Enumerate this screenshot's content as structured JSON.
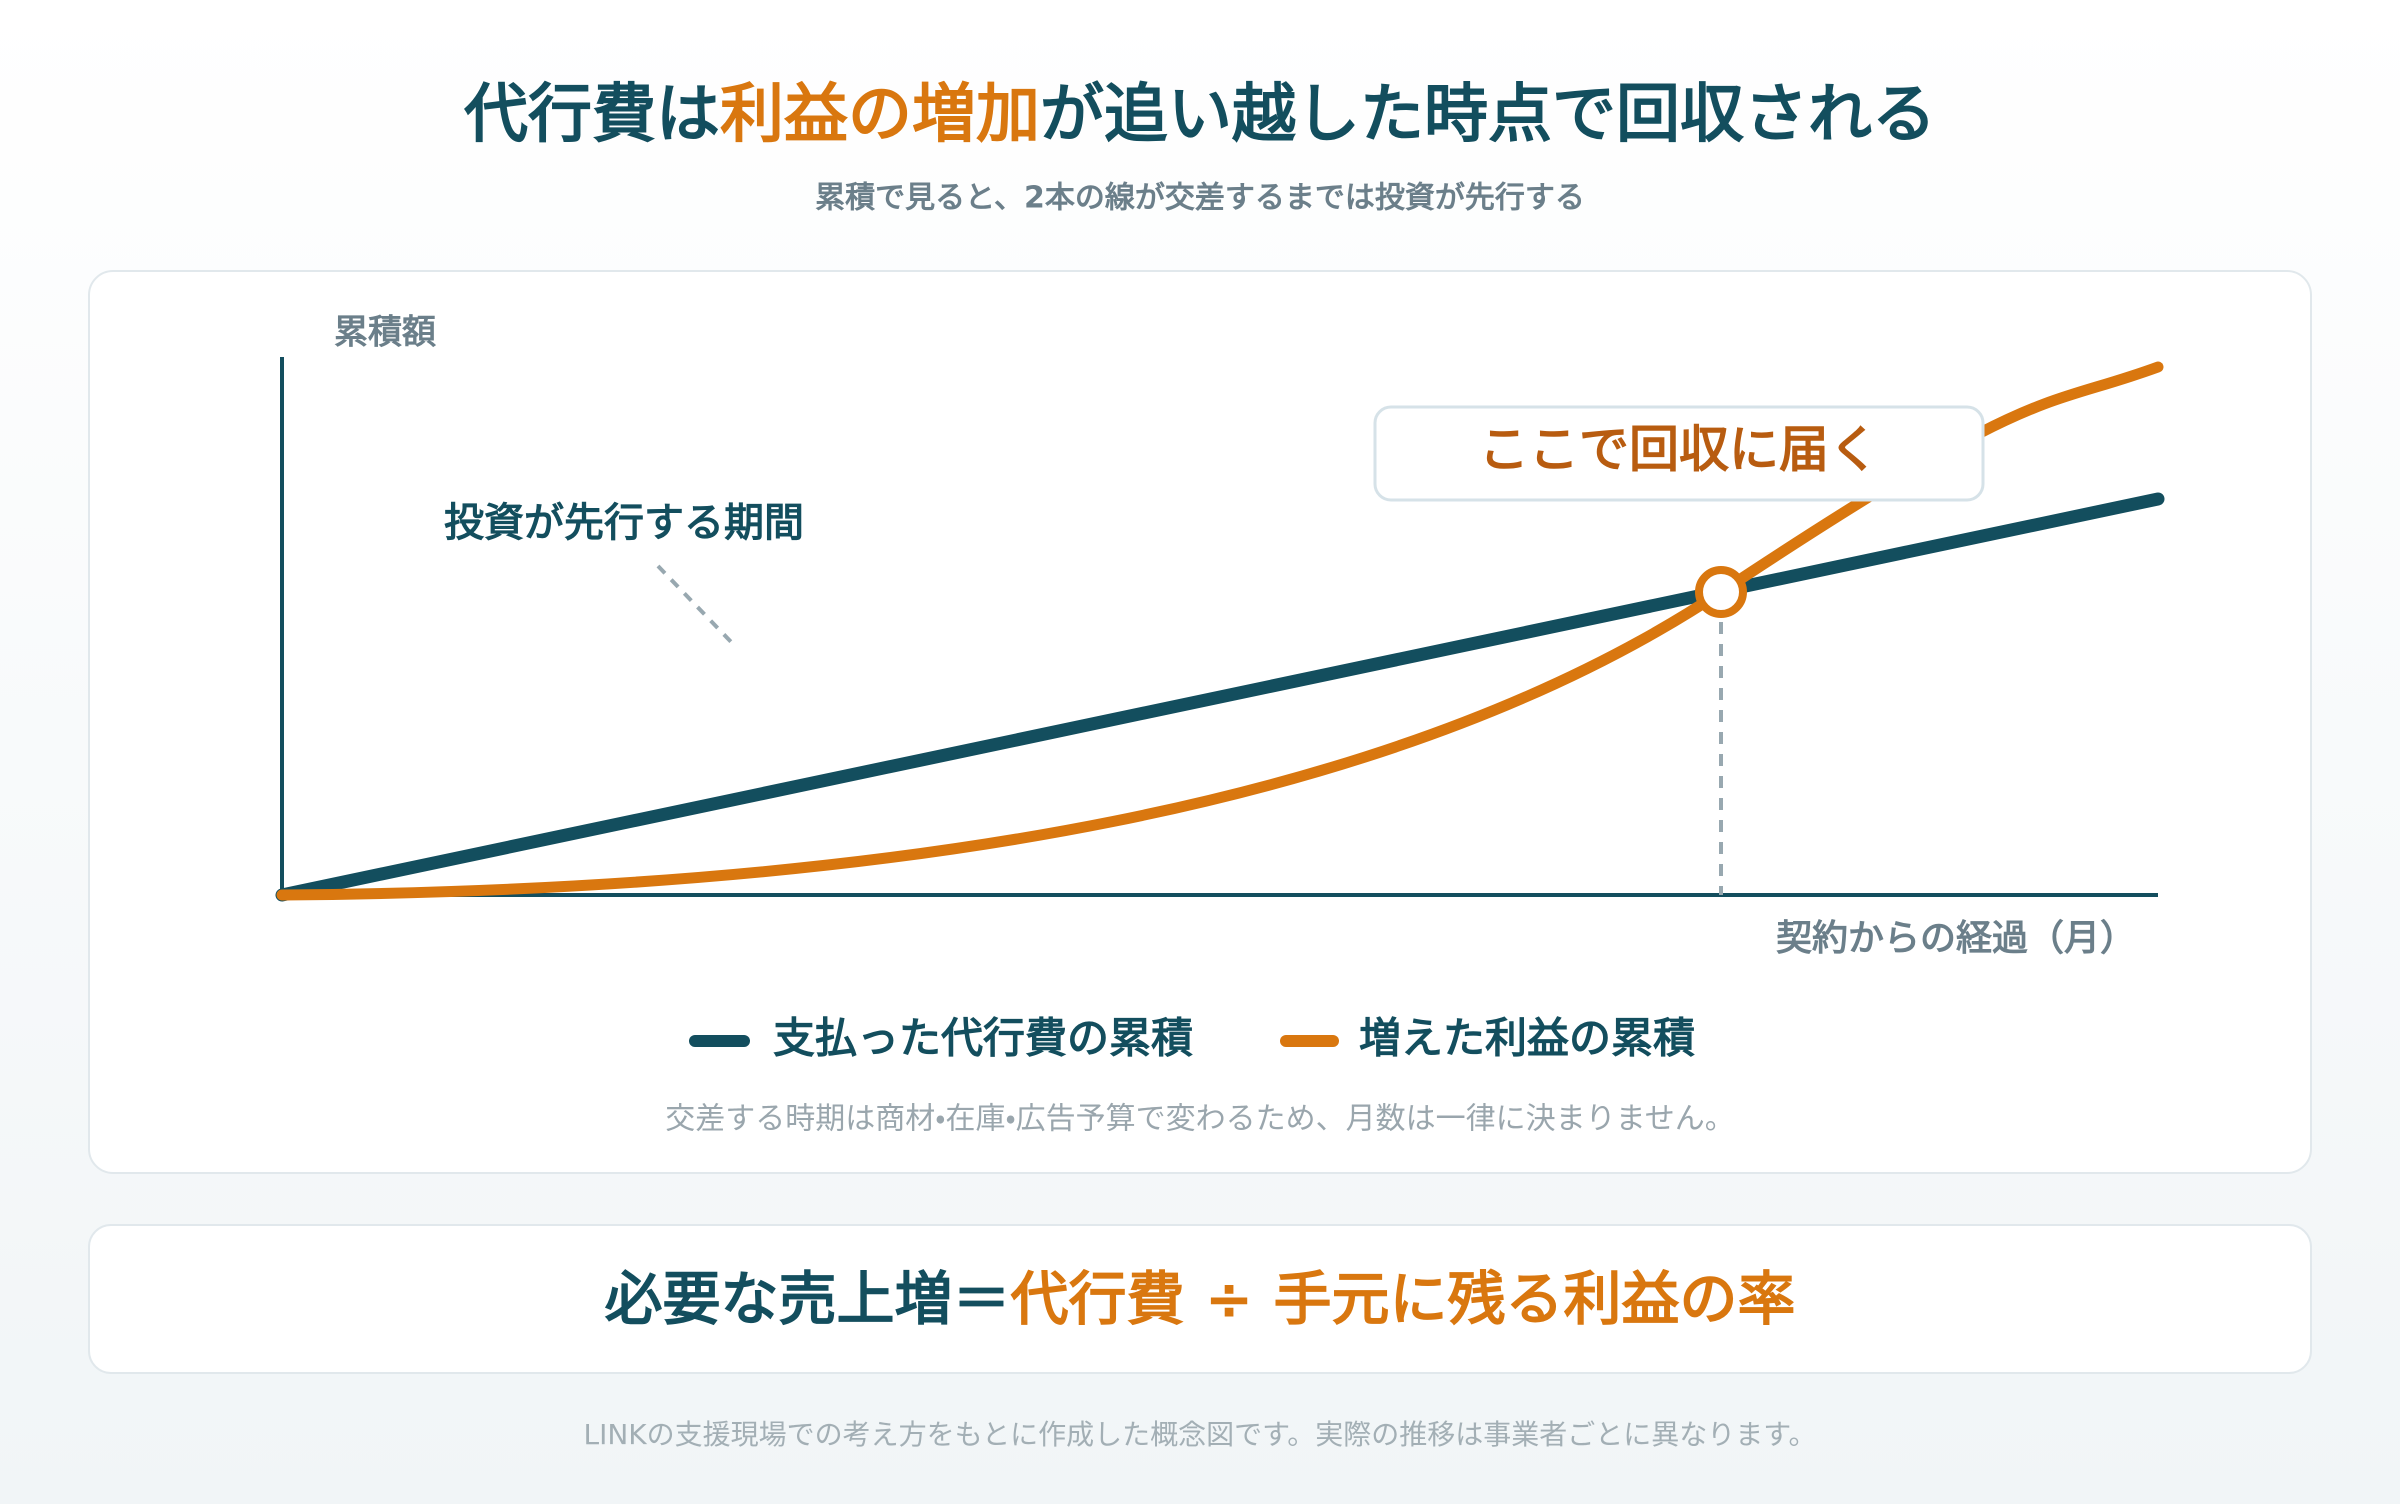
{
  "header": {
    "title": [
      {
        "text": "代行費は",
        "color": "#134e5e"
      },
      {
        "text": "利益の増加",
        "color": "#d9770f"
      },
      {
        "text": "が追い越した時点で回収される",
        "color": "#134e5e"
      }
    ],
    "subtitle": "累積で見ると、2本の線が交差するまでは投資が先行する"
  },
  "diagram": {
    "y_label": "累積額",
    "x_label": "契約からの経過（月）",
    "callout": "ここで回収に届く",
    "period_label": "投資が先行する期間",
    "legend": [
      {
        "name": "支払った代行費の累積",
        "color": "#134e5e"
      },
      {
        "name": "増えた利益の累積",
        "color": "#d9770f"
      }
    ],
    "note": "交差する時期は商材・在庫・広告予算で変わるため、月数は一律に決まりません。"
  },
  "formula": [
    {
      "text": "必要な売上増＝",
      "color": "#134e5e"
    },
    {
      "text": "代行費 ÷ 手元に残る利益の率",
      "color": "#d9770f"
    }
  ],
  "footer": "LINKの支援現場での考え方をもとに作成した概念図です。実際の推移は事業者ごとに異なります。"
}
